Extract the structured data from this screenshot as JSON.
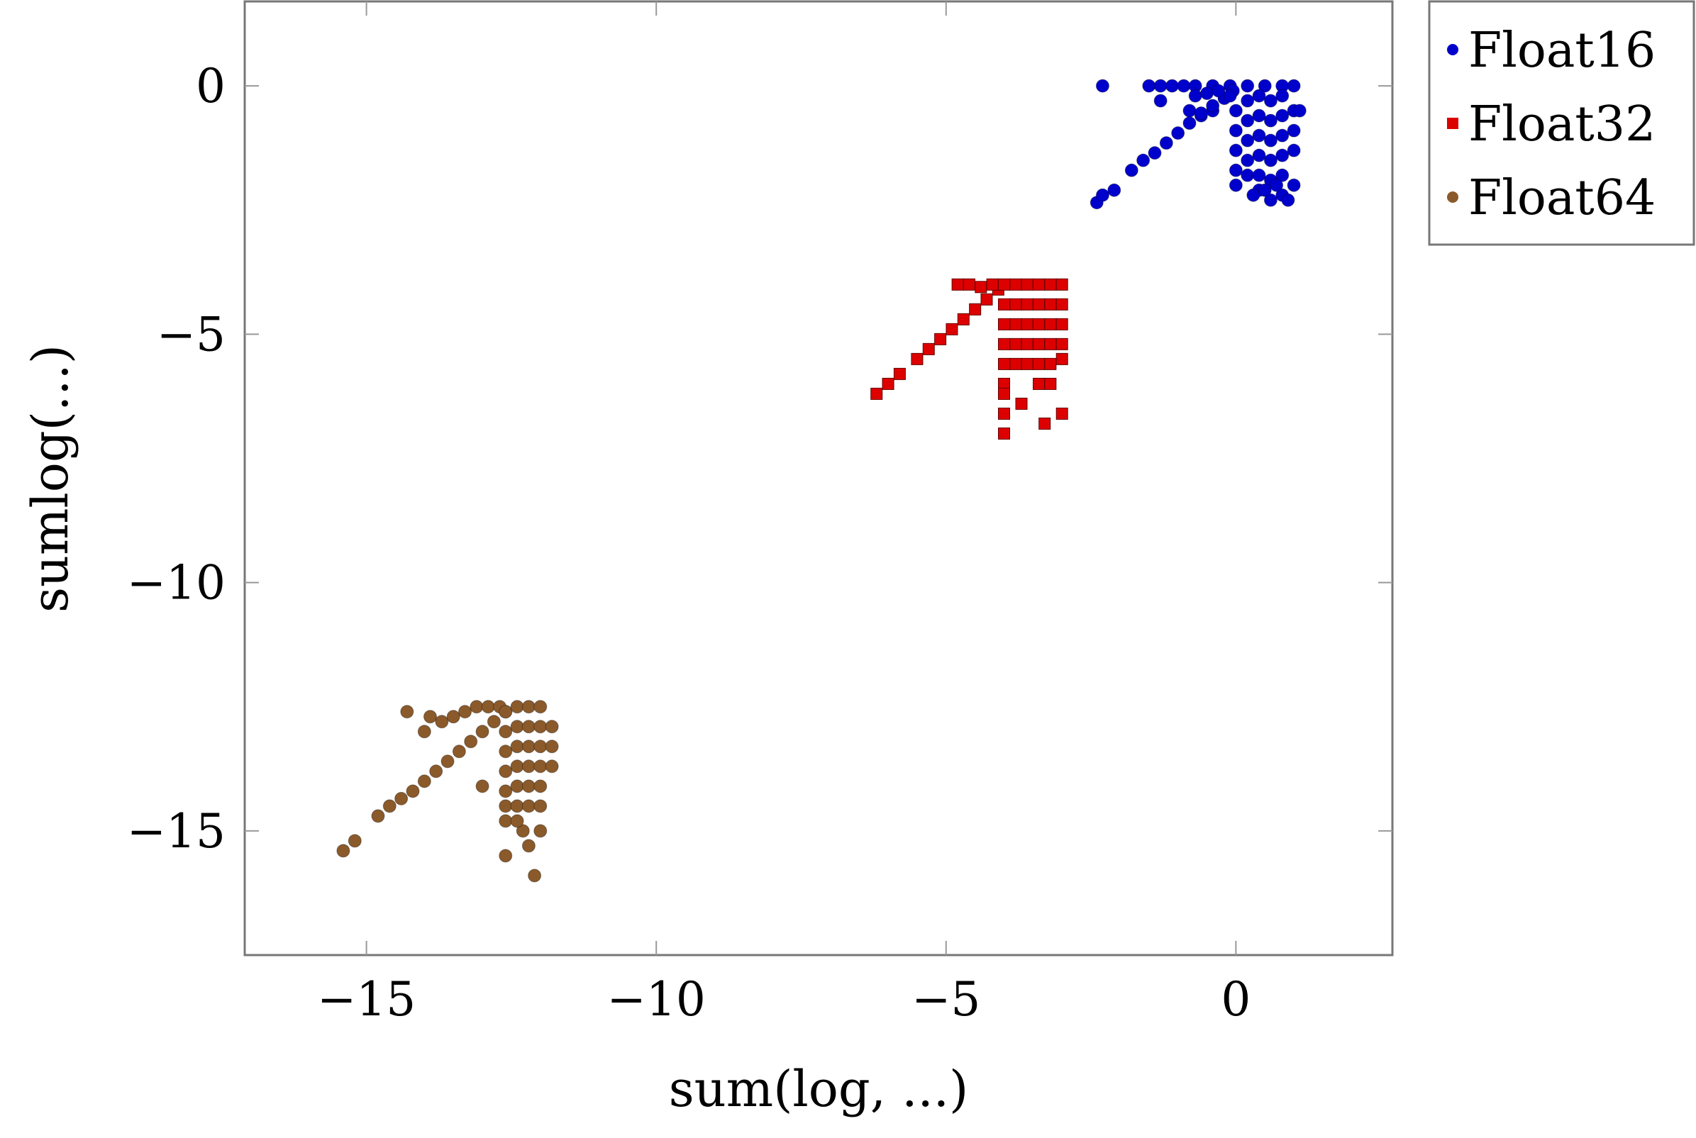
{
  "chart_data": {
    "type": "scatter",
    "xlabel": "sum(log, ...)",
    "ylabel": "sumlog(...)",
    "xlim": [
      -17.1,
      2.7
    ],
    "ylim": [
      -17.5,
      1.7
    ],
    "xticks": [
      -15,
      -10,
      -5,
      0
    ],
    "yticks": [
      0,
      -5,
      -10,
      -15
    ],
    "xtick_labels": [
      "−15",
      "−10",
      "−5",
      "0"
    ],
    "ytick_labels": [
      "0",
      "−5",
      "−10",
      "−15"
    ],
    "grid": false,
    "legend_position": "outside-top-right",
    "series": [
      {
        "name": "Float16",
        "color": "#0000cc",
        "marker": "circle",
        "points": [
          [
            -2.3,
            0.0
          ],
          [
            -1.5,
            0.0
          ],
          [
            -1.3,
            0.0
          ],
          [
            -1.1,
            0.0
          ],
          [
            -0.9,
            0.0
          ],
          [
            -0.7,
            0.0
          ],
          [
            -0.4,
            0.0
          ],
          [
            -0.1,
            0.0
          ],
          [
            0.2,
            0.0
          ],
          [
            0.5,
            0.0
          ],
          [
            0.8,
            0.0
          ],
          [
            1.0,
            0.0
          ],
          [
            -1.3,
            -0.3
          ],
          [
            -0.8,
            -0.5
          ],
          [
            -0.6,
            -0.6
          ],
          [
            -0.4,
            -0.5
          ],
          [
            -2.4,
            -2.35
          ],
          [
            -2.3,
            -2.2
          ],
          [
            -2.1,
            -2.1
          ],
          [
            -1.8,
            -1.7
          ],
          [
            -1.6,
            -1.5
          ],
          [
            -1.4,
            -1.35
          ],
          [
            -1.2,
            -1.15
          ],
          [
            -1.0,
            -0.95
          ],
          [
            -0.8,
            -0.75
          ],
          [
            -0.6,
            -0.55
          ],
          [
            -0.4,
            -0.4
          ],
          [
            -0.2,
            -0.25
          ],
          [
            -0.05,
            -0.1
          ],
          [
            -0.7,
            -0.2
          ],
          [
            -0.5,
            -0.15
          ],
          [
            -0.3,
            -0.1
          ],
          [
            -0.1,
            -0.2
          ],
          [
            0.0,
            -0.5
          ],
          [
            0.0,
            -0.9
          ],
          [
            0.0,
            -1.3
          ],
          [
            0.0,
            -1.7
          ],
          [
            0.0,
            -2.0
          ],
          [
            0.2,
            -0.3
          ],
          [
            0.2,
            -0.7
          ],
          [
            0.2,
            -1.1
          ],
          [
            0.2,
            -1.5
          ],
          [
            0.2,
            -1.8
          ],
          [
            0.4,
            -0.2
          ],
          [
            0.4,
            -0.6
          ],
          [
            0.4,
            -1.0
          ],
          [
            0.4,
            -1.4
          ],
          [
            0.4,
            -1.8
          ],
          [
            0.4,
            -2.1
          ],
          [
            0.6,
            -0.3
          ],
          [
            0.6,
            -0.7
          ],
          [
            0.6,
            -1.1
          ],
          [
            0.6,
            -1.5
          ],
          [
            0.6,
            -1.9
          ],
          [
            0.6,
            -2.3
          ],
          [
            0.8,
            -0.2
          ],
          [
            0.8,
            -0.6
          ],
          [
            0.8,
            -1.0
          ],
          [
            0.8,
            -1.4
          ],
          [
            0.8,
            -1.8
          ],
          [
            0.8,
            -2.2
          ],
          [
            1.0,
            -0.5
          ],
          [
            1.1,
            -0.5
          ],
          [
            1.0,
            -0.9
          ],
          [
            1.0,
            -1.3
          ],
          [
            1.0,
            -2.0
          ],
          [
            0.3,
            -2.2
          ],
          [
            0.5,
            -2.1
          ],
          [
            0.7,
            -2.0
          ],
          [
            0.9,
            -2.3
          ]
        ]
      },
      {
        "name": "Float32",
        "color": "#dd0000",
        "marker": "square",
        "points": [
          [
            -6.2,
            -6.2
          ],
          [
            -6.0,
            -6.0
          ],
          [
            -5.8,
            -5.8
          ],
          [
            -5.5,
            -5.5
          ],
          [
            -5.3,
            -5.3
          ],
          [
            -5.1,
            -5.1
          ],
          [
            -4.9,
            -4.9
          ],
          [
            -4.7,
            -4.7
          ],
          [
            -4.5,
            -4.5
          ],
          [
            -4.3,
            -4.3
          ],
          [
            -4.1,
            -4.1
          ],
          [
            -4.8,
            -4.0
          ],
          [
            -4.6,
            -4.0
          ],
          [
            -4.4,
            -4.05
          ],
          [
            -4.2,
            -4.0
          ],
          [
            -4.0,
            -4.0
          ],
          [
            -4.0,
            -4.4
          ],
          [
            -4.0,
            -4.8
          ],
          [
            -4.0,
            -5.2
          ],
          [
            -4.0,
            -5.6
          ],
          [
            -4.0,
            -6.0
          ],
          [
            -4.0,
            -6.2
          ],
          [
            -3.8,
            -4.0
          ],
          [
            -3.8,
            -4.4
          ],
          [
            -3.8,
            -4.8
          ],
          [
            -3.8,
            -5.2
          ],
          [
            -3.8,
            -5.6
          ],
          [
            -3.6,
            -4.0
          ],
          [
            -3.6,
            -4.4
          ],
          [
            -3.6,
            -4.8
          ],
          [
            -3.6,
            -5.2
          ],
          [
            -3.6,
            -5.6
          ],
          [
            -3.4,
            -4.0
          ],
          [
            -3.4,
            -4.4
          ],
          [
            -3.4,
            -4.8
          ],
          [
            -3.4,
            -5.2
          ],
          [
            -3.4,
            -5.6
          ],
          [
            -3.4,
            -6.0
          ],
          [
            -3.2,
            -4.0
          ],
          [
            -3.2,
            -4.4
          ],
          [
            -3.2,
            -4.8
          ],
          [
            -3.2,
            -5.2
          ],
          [
            -3.2,
            -5.6
          ],
          [
            -3.2,
            -6.0
          ],
          [
            -3.0,
            -4.0
          ],
          [
            -3.0,
            -4.4
          ],
          [
            -3.0,
            -4.8
          ],
          [
            -3.0,
            -5.2
          ],
          [
            -3.0,
            -5.5
          ],
          [
            -4.0,
            -6.6
          ],
          [
            -4.0,
            -7.0
          ],
          [
            -3.7,
            -6.4
          ],
          [
            -3.3,
            -6.8
          ],
          [
            -3.0,
            -6.6
          ]
        ]
      },
      {
        "name": "Float64",
        "color": "#8b5a2b",
        "marker": "circle",
        "points": [
          [
            -15.4,
            -15.4
          ],
          [
            -15.2,
            -15.2
          ],
          [
            -14.8,
            -14.7
          ],
          [
            -14.6,
            -14.5
          ],
          [
            -14.4,
            -14.35
          ],
          [
            -14.2,
            -14.2
          ],
          [
            -14.0,
            -14.0
          ],
          [
            -13.8,
            -13.8
          ],
          [
            -13.6,
            -13.6
          ],
          [
            -13.4,
            -13.4
          ],
          [
            -13.2,
            -13.2
          ],
          [
            -13.0,
            -13.0
          ],
          [
            -12.8,
            -12.8
          ],
          [
            -12.6,
            -12.6
          ],
          [
            -14.3,
            -12.6
          ],
          [
            -13.9,
            -12.7
          ],
          [
            -13.7,
            -12.8
          ],
          [
            -13.5,
            -12.7
          ],
          [
            -13.3,
            -12.6
          ],
          [
            -13.1,
            -12.5
          ],
          [
            -12.9,
            -12.5
          ],
          [
            -12.7,
            -12.5
          ],
          [
            -14.0,
            -13.0
          ],
          [
            -13.0,
            -14.1
          ],
          [
            -12.6,
            -12.6
          ],
          [
            -12.6,
            -13.0
          ],
          [
            -12.6,
            -13.4
          ],
          [
            -12.6,
            -13.8
          ],
          [
            -12.6,
            -14.2
          ],
          [
            -12.6,
            -14.5
          ],
          [
            -12.6,
            -14.8
          ],
          [
            -12.4,
            -12.5
          ],
          [
            -12.4,
            -12.9
          ],
          [
            -12.4,
            -13.3
          ],
          [
            -12.4,
            -13.7
          ],
          [
            -12.4,
            -14.1
          ],
          [
            -12.4,
            -14.5
          ],
          [
            -12.2,
            -12.5
          ],
          [
            -12.2,
            -12.9
          ],
          [
            -12.2,
            -13.3
          ],
          [
            -12.2,
            -13.7
          ],
          [
            -12.2,
            -14.1
          ],
          [
            -12.2,
            -14.5
          ],
          [
            -12.0,
            -12.5
          ],
          [
            -12.0,
            -12.9
          ],
          [
            -12.0,
            -13.3
          ],
          [
            -12.0,
            -13.7
          ],
          [
            -12.0,
            -14.1
          ],
          [
            -12.0,
            -14.5
          ],
          [
            -11.8,
            -12.9
          ],
          [
            -11.8,
            -13.3
          ],
          [
            -11.8,
            -13.7
          ],
          [
            -12.6,
            -15.5
          ],
          [
            -12.2,
            -15.3
          ],
          [
            -12.3,
            -15.0
          ],
          [
            -12.4,
            -14.8
          ],
          [
            -12.1,
            -15.9
          ],
          [
            -12.0,
            -15.0
          ]
        ]
      }
    ]
  }
}
